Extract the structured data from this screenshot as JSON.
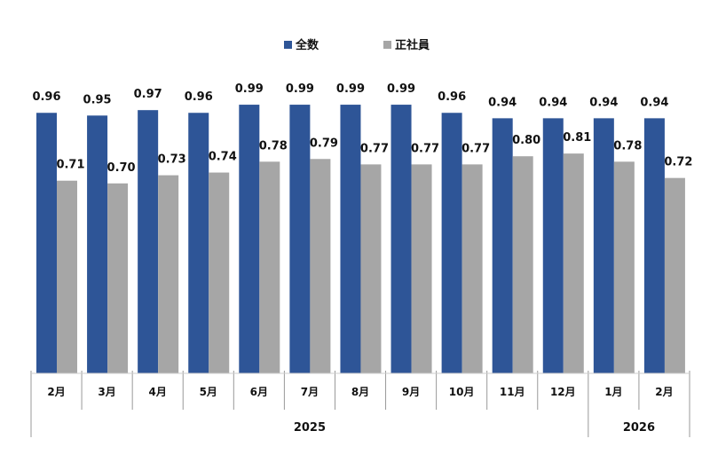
{
  "chart_data": {
    "type": "bar",
    "title": "",
    "xlabel": "",
    "ylabel": "",
    "ylim": [
      0,
      1.37
    ],
    "grid": false,
    "legend_position": "top-center",
    "categories": [
      "2月",
      "3月",
      "4月",
      "5月",
      "6月",
      "7月",
      "8月",
      "9月",
      "10月",
      "11月",
      "12月",
      "1月",
      "2月"
    ],
    "year_groups": [
      {
        "label": "2025",
        "count": 11
      },
      {
        "label": "2026",
        "count": 2
      }
    ],
    "series": [
      {
        "name": "全数",
        "color": "#2E5597",
        "values": [
          0.96,
          0.95,
          0.97,
          0.96,
          0.99,
          0.99,
          0.99,
          0.99,
          0.96,
          0.94,
          0.94,
          0.94,
          0.94
        ]
      },
      {
        "name": "正社員",
        "color": "#A6A6A6",
        "values": [
          0.71,
          0.7,
          0.73,
          0.74,
          0.78,
          0.79,
          0.77,
          0.77,
          0.77,
          0.8,
          0.81,
          0.78,
          0.72
        ]
      }
    ]
  }
}
